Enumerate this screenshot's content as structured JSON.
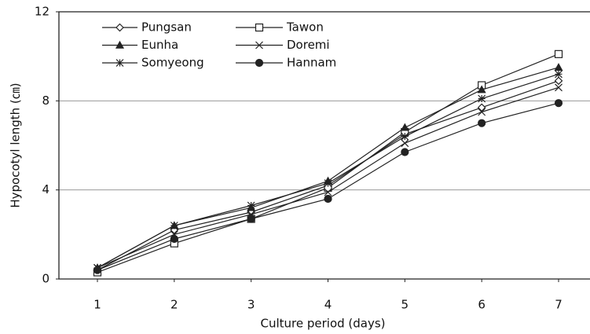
{
  "chart_data": {
    "type": "line",
    "xlabel": "Culture period (days)",
    "ylabel": "Hypocotyl length (㎝)",
    "categories": [
      "1",
      "2",
      "3",
      "4",
      "5",
      "6",
      "7"
    ],
    "ylim": [
      0,
      12
    ],
    "yticks": [
      0,
      4,
      8,
      12
    ],
    "grid": true,
    "legend": "upper left",
    "series": [
      {
        "name": "Pungsan",
        "color": "#222",
        "marker": "diamond",
        "values": [
          0.4,
          2.2,
          3.0,
          4.2,
          6.5,
          7.7,
          8.9
        ]
      },
      {
        "name": "Tawon",
        "color": "#222",
        "marker": "square",
        "values": [
          0.3,
          1.6,
          2.7,
          4.1,
          6.6,
          8.7,
          10.1
        ]
      },
      {
        "name": "Eunha",
        "color": "#222",
        "marker": "triangle",
        "values": [
          0.5,
          2.4,
          3.2,
          4.4,
          6.8,
          8.5,
          9.5
        ]
      },
      {
        "name": "Doremi",
        "color": "#222",
        "marker": "x",
        "values": [
          0.5,
          2.0,
          2.9,
          3.9,
          6.1,
          7.5,
          8.6
        ]
      },
      {
        "name": "Somyeong",
        "color": "#222",
        "marker": "asterisk",
        "values": [
          0.5,
          2.4,
          3.3,
          4.3,
          6.4,
          8.1,
          9.2
        ]
      },
      {
        "name": "Hannam",
        "color": "#222",
        "marker": "circle",
        "values": [
          0.4,
          1.8,
          2.7,
          3.6,
          5.7,
          7.0,
          7.9
        ]
      }
    ]
  }
}
